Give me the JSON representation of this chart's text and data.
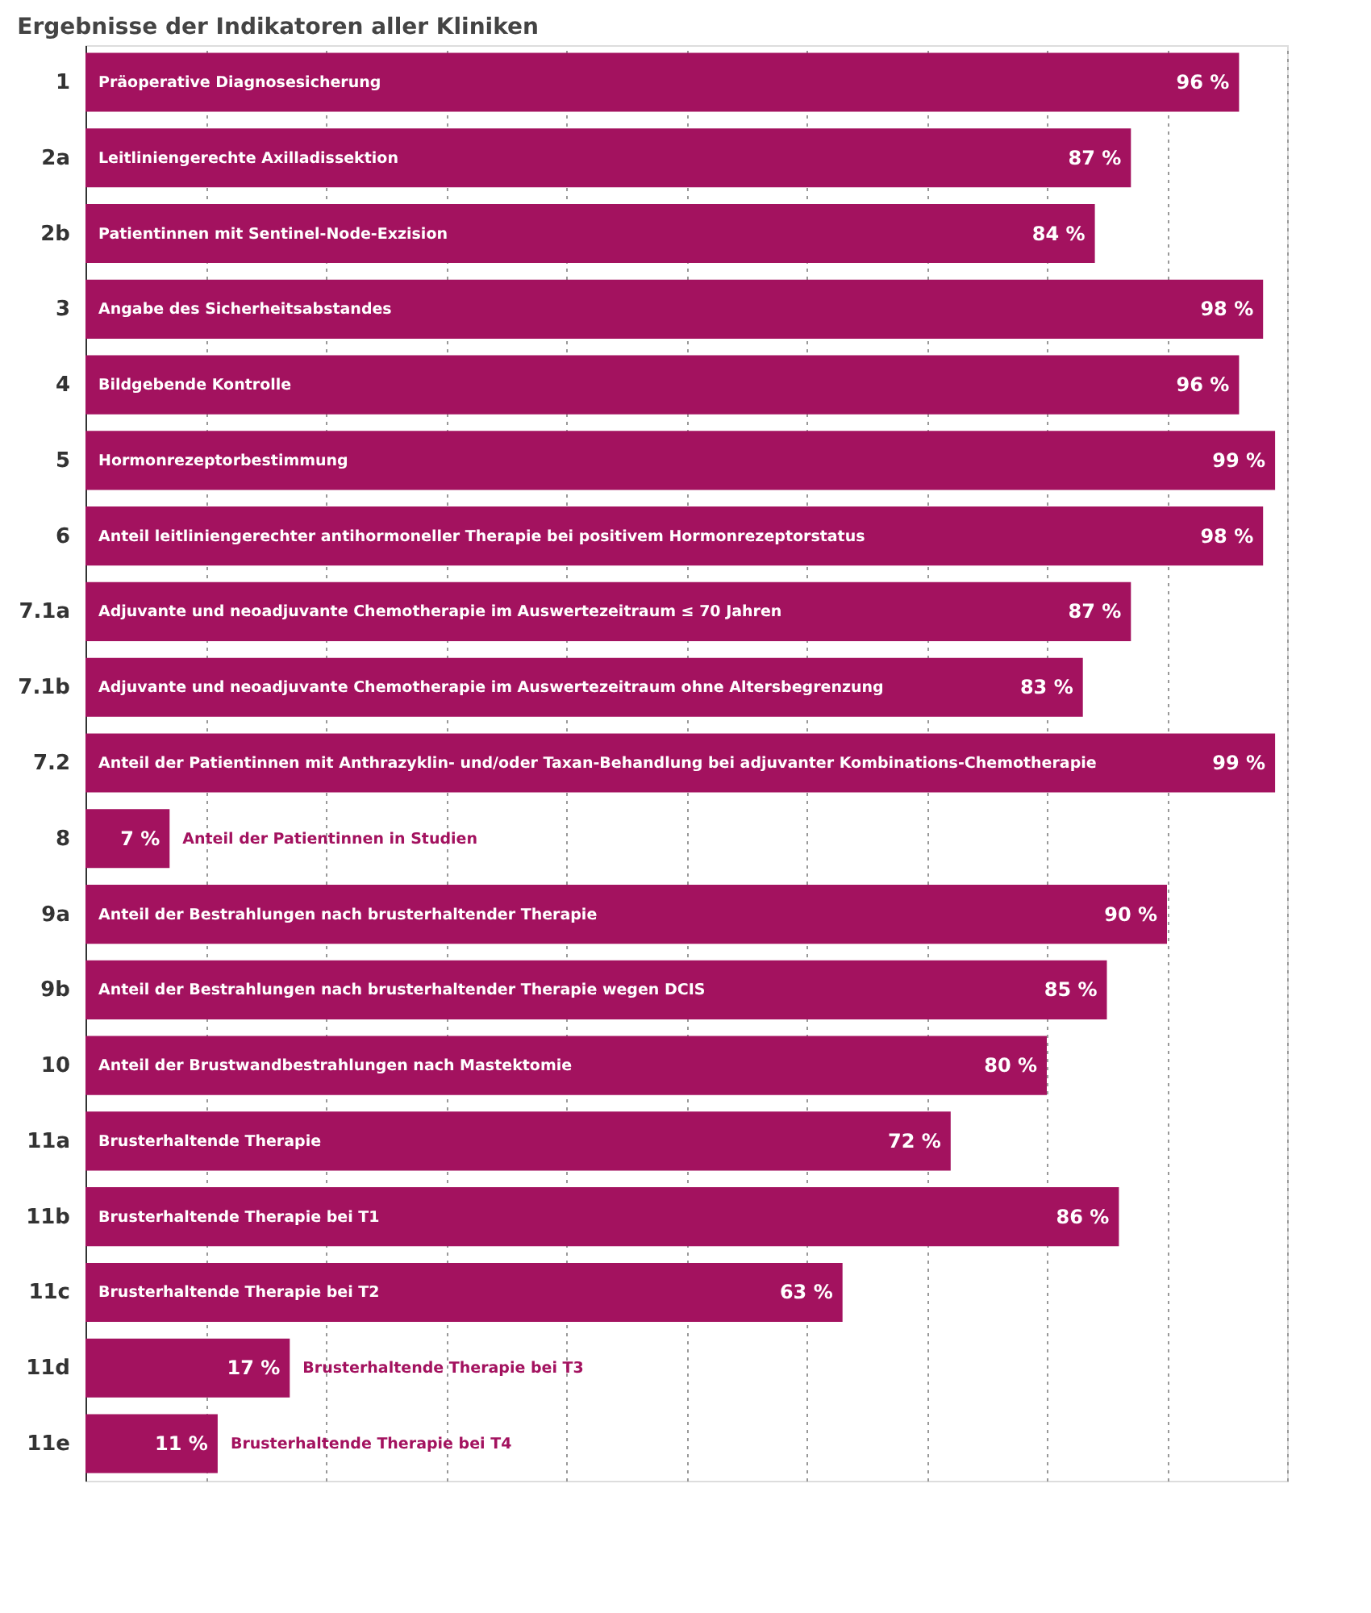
{
  "chart_data": {
    "type": "bar",
    "orientation": "horizontal",
    "title": "Ergebnisse der Indikatoren aller Kliniken",
    "categories": [
      "1",
      "2a",
      "2b",
      "3",
      "4",
      "5",
      "6",
      "7.1a",
      "7.1b",
      "7.2",
      "8",
      "9a",
      "9b",
      "10",
      "11a",
      "11b",
      "11c",
      "11d",
      "11e"
    ],
    "values": [
      96,
      87,
      84,
      98,
      96,
      99,
      98,
      87,
      83,
      99,
      7,
      90,
      85,
      80,
      72,
      86,
      63,
      17,
      11
    ],
    "value_labels": [
      "96 %",
      "87 %",
      "84 %",
      "98 %",
      "96 %",
      "99 %",
      "98 %",
      "87 %",
      "83 %",
      "99 %",
      "7 %",
      "90 %",
      "85 %",
      "80 %",
      "72 %",
      "86 %",
      "63 %",
      "17 %",
      "11 %"
    ],
    "color": "#a3125f",
    "xlim": [
      0,
      100
    ],
    "xticks": [
      {
        "value": 0,
        "label": null
      },
      {
        "value": 10,
        "label": null
      },
      {
        "value": 20,
        "label": null
      },
      {
        "value": 30,
        "label": null
      },
      {
        "value": 40,
        "label": null
      },
      {
        "value": 50,
        "label": null
      },
      {
        "value": 60,
        "label": null
      },
      {
        "value": 70,
        "label": null
      },
      {
        "value": 80,
        "label": null
      },
      {
        "value": 90,
        "label": null
      },
      {
        "value": 100,
        "label": null
      }
    ],
    "grid": "x",
    "tick_labels": "y",
    "annotations": [
      {
        "text": "Präoperative Diagnosesicherung",
        "x": 0,
        "y": "1"
      },
      {
        "text": "Leitliniengerechte Axilladissektion",
        "x": 0,
        "y": "2a"
      },
      {
        "text": "Patientinnen mit Sentinel-Node-Exzision",
        "x": 0,
        "y": "2b"
      },
      {
        "text": "Angabe des Sicherheitsabstandes",
        "x": 0,
        "y": "3"
      },
      {
        "text": "Bildgebende Kontrolle",
        "x": 0,
        "y": "4"
      },
      {
        "text": "Hormonrezeptorbestimmung",
        "x": 0,
        "y": "5"
      },
      {
        "text": "Anteil leitliniengerechter antihormoneller Therapie bei positivem Hormonrezeptorstatus",
        "x": 0,
        "y": "6"
      },
      {
        "text": "Adjuvante und neoadjuvante Chemotherapie im Auswertezeitraum ≤ 70 Jahren",
        "x": 0,
        "y": "7.1a"
      },
      {
        "text": "Adjuvante und neoadjuvante Chemotherapie im Auswertezeitraum ohne Altersbegrenzung",
        "x": 0,
        "y": "7.1b"
      },
      {
        "text": "Anteil der Patientinnen mit Anthrazyklin- und/oder Taxan-Behandlung bei adjuvanter Kombinations-Chemotherapie",
        "x": 0,
        "y": "7.2"
      },
      {
        "text": "Anteil der Patientinnen in Studien",
        "x": 7,
        "y": "8"
      },
      {
        "text": "Anteil der Bestrahlungen nach brusterhaltender Therapie",
        "x": 0,
        "y": "9a"
      },
      {
        "text": "Anteil der Bestrahlungen nach brusterhaltender Therapie wegen DCIS",
        "x": 0,
        "y": "9b"
      },
      {
        "text": "Anteil der Brustwandbestrahlungen nach Mastektomie",
        "x": 0,
        "y": "10"
      },
      {
        "text": "Brusterhaltende Therapie",
        "x": 0,
        "y": "11a"
      },
      {
        "text": "Brusterhaltende Therapie bei T1",
        "x": 0,
        "y": "11b"
      },
      {
        "text": "Brusterhaltende Therapie bei T2",
        "x": 0,
        "y": "11c"
      },
      {
        "text": "Brusterhaltende Therapie bei T3",
        "x": 17,
        "y": "11d"
      },
      {
        "text": "Brusterhaltende Therapie bei T4",
        "x": 11,
        "y": "11e"
      }
    ]
  }
}
